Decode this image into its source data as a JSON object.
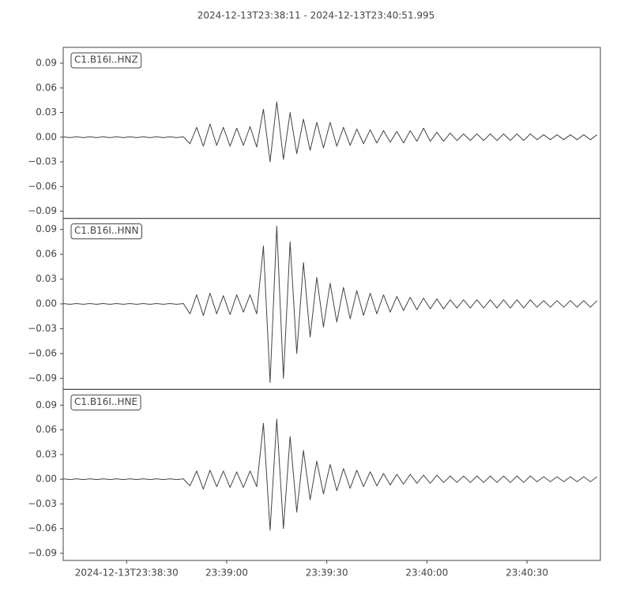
{
  "title": "2024-12-13T23:38:11  -  2024-12-13T23:40:51.995",
  "chart_data": [
    {
      "type": "line",
      "label": "C1.B16I..HNZ",
      "color": "#444444",
      "xlim": [
        11,
        171.995
      ],
      "ylim": [
        -0.0987,
        0.1092
      ],
      "yticks": [
        {
          "value": -0.09,
          "label": "−0.09"
        },
        {
          "value": -0.06,
          "label": "−0.06"
        },
        {
          "value": -0.03,
          "label": "−0.03"
        },
        {
          "value": 0,
          "label": "0.00"
        },
        0.03,
        0.06,
        0.09
      ],
      "x": [
        11,
        13,
        15,
        17,
        19,
        21,
        23,
        25,
        27,
        29,
        31,
        33,
        35,
        37,
        39,
        41,
        43,
        45,
        47,
        49,
        51,
        53,
        55,
        57,
        59,
        61,
        63,
        65,
        67,
        69,
        71,
        73,
        75,
        77,
        79,
        81,
        83,
        85,
        87,
        89,
        91,
        93,
        95,
        97,
        99,
        101,
        103,
        105,
        107,
        109,
        111,
        113,
        115,
        117,
        119,
        121,
        123,
        125,
        127,
        129,
        131,
        133,
        135,
        137,
        139,
        141,
        143,
        145,
        147,
        149,
        151,
        153,
        155,
        157,
        159,
        161,
        163,
        165,
        167,
        169,
        171
      ],
      "values": [
        0.0005,
        -0.0005,
        0.0005,
        -0.0005,
        0.0005,
        -0.0005,
        0.0005,
        -0.0005,
        0.0005,
        -0.0005,
        0.0005,
        -0.0005,
        0.0005,
        -0.0005,
        0.0005,
        -0.0005,
        0.0005,
        -0.0005,
        0.0005,
        -0.008,
        0.012,
        -0.011,
        0.016,
        -0.01,
        0.012,
        -0.011,
        0.011,
        -0.01,
        0.013,
        -0.012,
        0.034,
        -0.03,
        0.043,
        -0.027,
        0.03,
        -0.02,
        0.022,
        -0.016,
        0.018,
        -0.013,
        0.018,
        -0.011,
        0.012,
        -0.01,
        0.01,
        -0.008,
        0.009,
        -0.007,
        0.008,
        -0.006,
        0.007,
        -0.007,
        0.008,
        -0.005,
        0.011,
        -0.005,
        0.006,
        -0.005,
        0.005,
        -0.004,
        0.004,
        -0.004,
        0.004,
        -0.004,
        0.004,
        -0.004,
        0.004,
        -0.004,
        0.004,
        -0.004,
        0.004,
        -0.003,
        0.003,
        -0.003,
        0.003,
        -0.003,
        0.003,
        -0.003,
        0.003,
        -0.003,
        0.003
      ]
    },
    {
      "type": "line",
      "label": "C1.B16I..HNN",
      "color": "#444444",
      "xlim": [
        11,
        171.995
      ],
      "ylim": [
        -0.1034,
        0.1034
      ],
      "yticks": [
        {
          "value": -0.09,
          "label": "−0.09"
        },
        {
          "value": -0.06,
          "label": "−0.06"
        },
        {
          "value": -0.03,
          "label": "−0.03"
        },
        {
          "value": 0,
          "label": "0.00"
        },
        0.03,
        0.06,
        0.09
      ],
      "x": [
        11,
        13,
        15,
        17,
        19,
        21,
        23,
        25,
        27,
        29,
        31,
        33,
        35,
        37,
        39,
        41,
        43,
        45,
        47,
        49,
        51,
        53,
        55,
        57,
        59,
        61,
        63,
        65,
        67,
        69,
        71,
        73,
        75,
        77,
        79,
        81,
        83,
        85,
        87,
        89,
        91,
        93,
        95,
        97,
        99,
        101,
        103,
        105,
        107,
        109,
        111,
        113,
        115,
        117,
        119,
        121,
        123,
        125,
        127,
        129,
        131,
        133,
        135,
        137,
        139,
        141,
        143,
        145,
        147,
        149,
        151,
        153,
        155,
        157,
        159,
        161,
        163,
        165,
        167,
        169,
        171
      ],
      "values": [
        0.0005,
        -0.0005,
        0.0005,
        -0.0005,
        0.0005,
        -0.0005,
        0.0005,
        -0.0005,
        0.0005,
        -0.0005,
        0.0005,
        -0.0005,
        0.0005,
        -0.0005,
        0.0005,
        -0.0005,
        0.0005,
        -0.0005,
        0.0005,
        -0.012,
        0.011,
        -0.014,
        0.013,
        -0.012,
        0.01,
        -0.013,
        0.011,
        -0.01,
        0.011,
        -0.012,
        0.07,
        -0.095,
        0.094,
        -0.09,
        0.075,
        -0.06,
        0.05,
        -0.04,
        0.032,
        -0.028,
        0.025,
        -0.022,
        0.02,
        -0.018,
        0.016,
        -0.014,
        0.013,
        -0.012,
        0.011,
        -0.01,
        0.009,
        -0.008,
        0.008,
        -0.007,
        0.007,
        -0.006,
        0.006,
        -0.006,
        0.005,
        -0.005,
        0.005,
        -0.005,
        0.005,
        -0.005,
        0.005,
        -0.005,
        0.005,
        -0.005,
        0.005,
        -0.005,
        0.005,
        -0.004,
        0.004,
        -0.004,
        0.004,
        -0.004,
        0.004,
        -0.004,
        0.004,
        -0.004,
        0.004
      ]
    },
    {
      "type": "line",
      "label": "C1.B16I..HNE",
      "color": "#444444",
      "xlim": [
        11,
        171.995
      ],
      "ylim": [
        -0.0987,
        0.1092
      ],
      "yticks": [
        {
          "value": -0.09,
          "label": "−0.09"
        },
        {
          "value": -0.06,
          "label": "−0.06"
        },
        {
          "value": -0.03,
          "label": "−0.03"
        },
        {
          "value": 0,
          "label": "0.00"
        },
        0.03,
        0.06,
        0.09
      ],
      "xticks": [
        {
          "value": 30,
          "label": "2024-12-13T23:38:30"
        },
        {
          "value": 60,
          "label": "23:39:00"
        },
        {
          "value": 90,
          "label": "23:39:30"
        },
        {
          "value": 120,
          "label": "23:40:00"
        },
        {
          "value": 150,
          "label": "23:40:30"
        }
      ],
      "x": [
        11,
        13,
        15,
        17,
        19,
        21,
        23,
        25,
        27,
        29,
        31,
        33,
        35,
        37,
        39,
        41,
        43,
        45,
        47,
        49,
        51,
        53,
        55,
        57,
        59,
        61,
        63,
        65,
        67,
        69,
        71,
        73,
        75,
        77,
        79,
        81,
        83,
        85,
        87,
        89,
        91,
        93,
        95,
        97,
        99,
        101,
        103,
        105,
        107,
        109,
        111,
        113,
        115,
        117,
        119,
        121,
        123,
        125,
        127,
        129,
        131,
        133,
        135,
        137,
        139,
        141,
        143,
        145,
        147,
        149,
        151,
        153,
        155,
        157,
        159,
        161,
        163,
        165,
        167,
        169,
        171
      ],
      "values": [
        0.0005,
        -0.0005,
        0.0005,
        -0.0005,
        0.0005,
        -0.0005,
        0.0005,
        -0.0005,
        0.0005,
        -0.0005,
        0.0005,
        -0.0005,
        0.0005,
        -0.0005,
        0.0005,
        -0.0005,
        0.0005,
        -0.0005,
        0.0005,
        -0.008,
        0.01,
        -0.012,
        0.011,
        -0.009,
        0.01,
        -0.01,
        0.009,
        -0.01,
        0.01,
        -0.009,
        0.068,
        -0.062,
        0.073,
        -0.06,
        0.052,
        -0.04,
        0.035,
        -0.025,
        0.022,
        -0.018,
        0.018,
        -0.014,
        0.013,
        -0.011,
        0.011,
        -0.009,
        0.009,
        -0.008,
        0.007,
        -0.007,
        0.006,
        -0.006,
        0.006,
        -0.005,
        0.005,
        -0.005,
        0.005,
        -0.004,
        0.004,
        -0.004,
        0.004,
        -0.004,
        0.004,
        -0.004,
        0.004,
        -0.004,
        0.004,
        -0.004,
        0.004,
        -0.004,
        0.004,
        -0.003,
        0.003,
        -0.003,
        0.003,
        -0.003,
        0.003,
        -0.003,
        0.003,
        -0.003,
        0.003
      ]
    }
  ]
}
